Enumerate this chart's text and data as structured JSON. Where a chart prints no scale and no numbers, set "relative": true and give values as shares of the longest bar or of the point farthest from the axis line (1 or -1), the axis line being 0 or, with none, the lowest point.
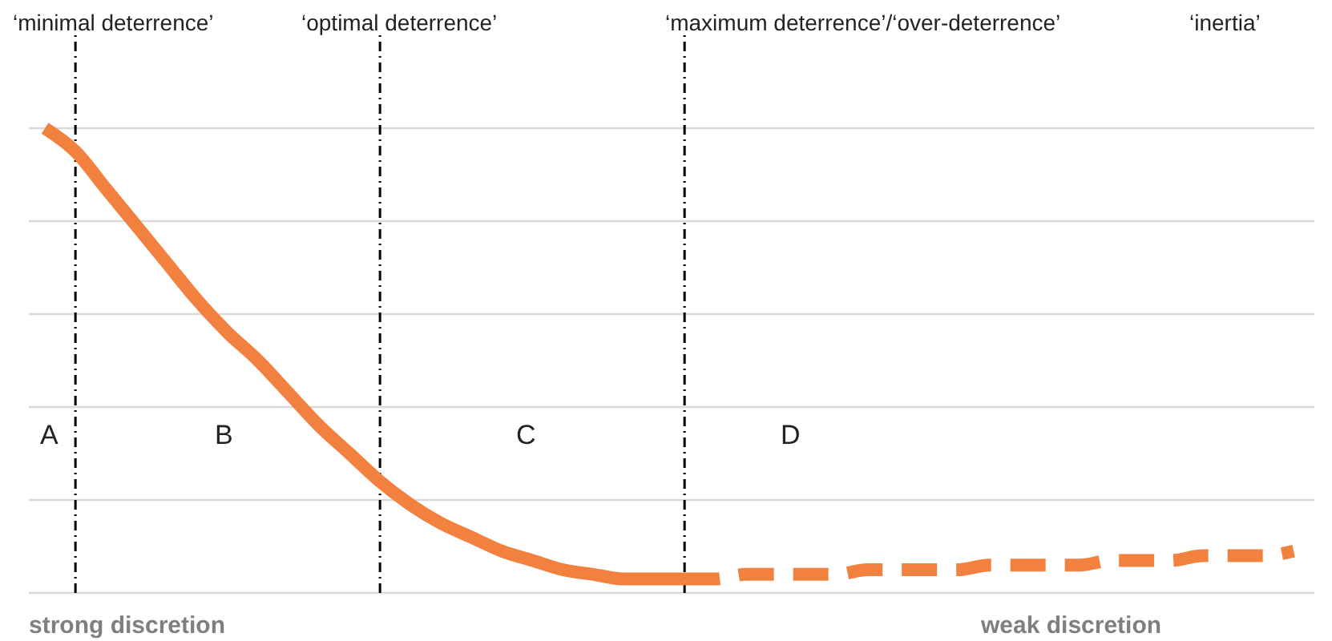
{
  "chart_data": {
    "type": "line",
    "relative": true,
    "grid": true,
    "tick_labels": false,
    "marker": "none",
    "categories": [
      null,
      null,
      null,
      null,
      null,
      null,
      null,
      null,
      null,
      null,
      null,
      null,
      null,
      null,
      null,
      null,
      null,
      null,
      null,
      null,
      null,
      null,
      null,
      null,
      null,
      null,
      null,
      null,
      null,
      null,
      null,
      null,
      null,
      null,
      null,
      null,
      null,
      null,
      null,
      null,
      null,
      null
    ],
    "series": [
      {
        "color": "#f28140",
        "line_style": "solid",
        "values": [
          1.0,
          0.95,
          0.87,
          0.79,
          0.71,
          0.63,
          0.56,
          0.5,
          0.43,
          0.36,
          0.3,
          0.24,
          0.19,
          0.15,
          0.12,
          0.09,
          0.07,
          0.05,
          0.04,
          0.03,
          0.03,
          0.03,
          null,
          null,
          null,
          null,
          null,
          null,
          null,
          null,
          null,
          null,
          null,
          null,
          null,
          null,
          null,
          null,
          null,
          null,
          null,
          null
        ]
      },
      {
        "color": "#f28140",
        "line_style": "dashed",
        "values": [
          null,
          null,
          null,
          null,
          null,
          null,
          null,
          null,
          null,
          null,
          null,
          null,
          null,
          null,
          null,
          null,
          null,
          null,
          null,
          null,
          null,
          0.03,
          0.03,
          0.04,
          0.04,
          0.04,
          0.04,
          0.05,
          0.05,
          0.05,
          0.05,
          0.06,
          0.06,
          0.06,
          0.06,
          0.07,
          0.07,
          0.07,
          0.08,
          0.08,
          0.08,
          0.09
        ]
      }
    ],
    "annotations": [
      "‘minimal deterrence’",
      "‘optimal deterrence’",
      "‘maximum deterrence’/‘over-deterrence’",
      "‘inertia’",
      "A",
      "B",
      "C",
      "D",
      "strong discretion",
      "weak discretion"
    ]
  }
}
